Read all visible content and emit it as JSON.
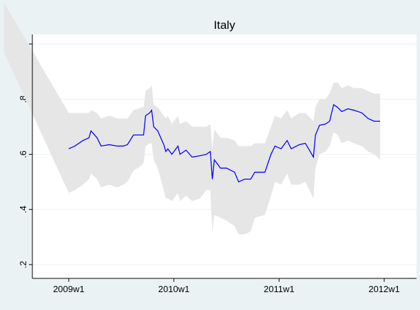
{
  "chart_data": {
    "type": "band-line",
    "title": "Italy",
    "x": [
      2516,
      2548,
      2551,
      2555,
      2558,
      2559,
      2562,
      2564,
      2568,
      2572,
      2575,
      2577,
      2580,
      2584,
      2585,
      2586,
      2588,
      2589,
      2590,
      2592,
      2595,
      2596,
      2597,
      2599,
      2602,
      2603,
      2606,
      2609,
      2613,
      2616,
      2618,
      2619,
      2620,
      2623,
      2626,
      2630,
      2632,
      2635,
      2638,
      2640,
      2645,
      2648,
      2650,
      2653,
      2656,
      2658,
      2662,
      2665,
      2669,
      2670,
      2672,
      2675,
      2677,
      2679,
      2681,
      2683,
      2686,
      2689,
      2693,
      2696,
      2699,
      2702
    ],
    "line": {
      "color": "#0000ff",
      "values": [
        null,
        0.62,
        0.63,
        0.65,
        0.66,
        0.685,
        0.66,
        0.63,
        0.635,
        0.63,
        0.63,
        0.635,
        0.67,
        0.67,
        0.67,
        0.74,
        0.75,
        0.76,
        0.7,
        0.685,
        0.635,
        0.61,
        0.62,
        0.6,
        0.63,
        0.6,
        0.615,
        0.59,
        0.595,
        0.6,
        0.61,
        0.51,
        0.58,
        0.55,
        0.55,
        0.535,
        0.5,
        0.51,
        0.51,
        0.535,
        0.535,
        0.6,
        0.63,
        0.62,
        0.65,
        0.62,
        0.635,
        0.64,
        0.59,
        0.67,
        0.705,
        0.71,
        0.72,
        0.78,
        0.77,
        0.755,
        0.765,
        0.76,
        0.75,
        0.73,
        0.72,
        0.72
      ]
    },
    "band": {
      "color": "#e6e6e6",
      "upper": [
        1.15,
        0.75,
        0.75,
        0.75,
        0.75,
        0.76,
        0.75,
        0.73,
        0.74,
        0.73,
        0.73,
        0.73,
        0.76,
        0.77,
        0.77,
        0.83,
        0.84,
        0.85,
        0.78,
        0.77,
        0.74,
        0.73,
        0.74,
        0.71,
        0.74,
        0.71,
        0.72,
        0.7,
        0.7,
        0.7,
        0.71,
        0.62,
        0.69,
        0.66,
        0.66,
        0.65,
        0.63,
        0.63,
        0.63,
        0.64,
        0.64,
        0.7,
        0.74,
        0.73,
        0.76,
        0.73,
        0.75,
        0.75,
        0.72,
        0.77,
        0.8,
        0.8,
        0.82,
        0.86,
        0.86,
        0.84,
        0.85,
        0.84,
        0.84,
        0.83,
        0.82,
        0.82
      ],
      "lower": [
        0.97,
        0.46,
        0.47,
        0.49,
        0.51,
        0.53,
        0.51,
        0.48,
        0.49,
        0.48,
        0.49,
        0.5,
        0.54,
        0.56,
        0.57,
        0.63,
        0.64,
        0.64,
        0.58,
        0.55,
        0.47,
        0.44,
        0.44,
        0.43,
        0.46,
        0.43,
        0.45,
        0.43,
        0.44,
        0.47,
        0.47,
        0.32,
        0.38,
        0.37,
        0.36,
        0.34,
        0.31,
        0.31,
        0.32,
        0.37,
        0.38,
        0.45,
        0.5,
        0.49,
        0.53,
        0.49,
        0.49,
        0.5,
        0.44,
        0.55,
        0.6,
        0.61,
        0.63,
        0.68,
        0.67,
        0.64,
        0.65,
        0.64,
        0.63,
        0.61,
        0.6,
        0.58
      ]
    },
    "xlim": [
      2530,
      2720
    ],
    "xticks": [
      {
        "value": 2548,
        "label": "2009w1"
      },
      {
        "value": 2600,
        "label": "2010w1"
      },
      {
        "value": 2652,
        "label": "2011w1"
      },
      {
        "value": 2704,
        "label": "2012w1"
      }
    ],
    "ylim": [
      0.15,
      1.035
    ],
    "yticks": [
      {
        "value": 0.2,
        "label": ".2"
      },
      {
        "value": 0.4,
        "label": ".4"
      },
      {
        "value": 0.6,
        "label": ".6"
      },
      {
        "value": 0.8,
        "label": ".8"
      },
      1
    ],
    "grid": true
  }
}
